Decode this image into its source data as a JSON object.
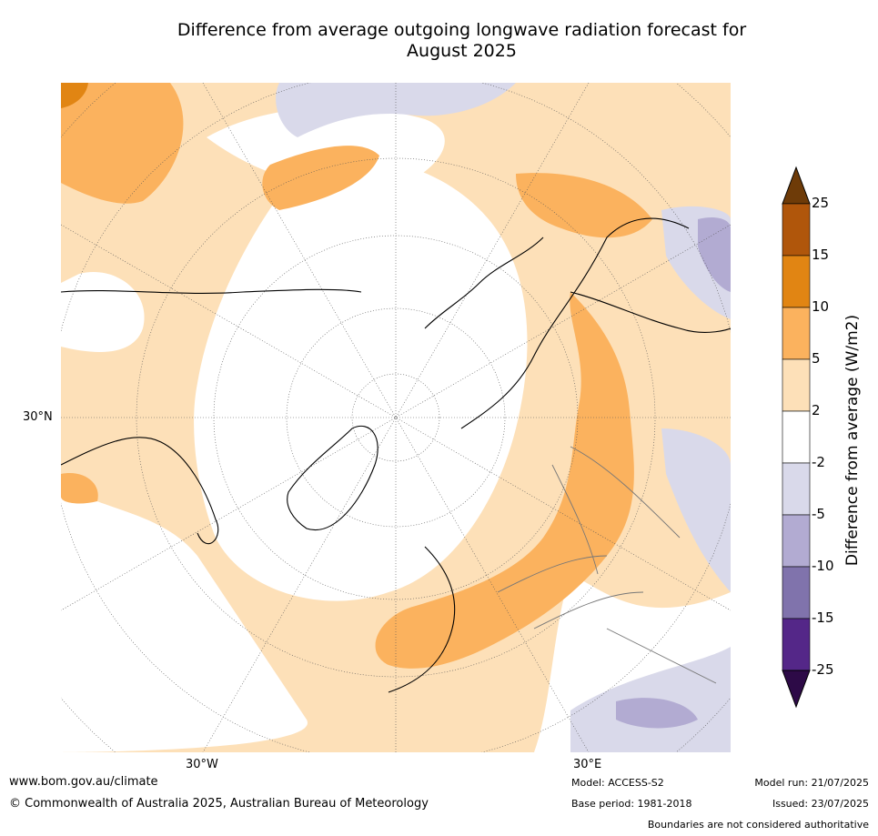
{
  "title": {
    "line1": "Difference from average outgoing longwave radiation forecast for",
    "line2": "August 2025"
  },
  "map": {
    "lat_label": "30°N",
    "lon_labels": [
      "30°W",
      "30°E"
    ]
  },
  "legend": {
    "title": "Difference from average (W/m2)",
    "ticks": [
      "25",
      "15",
      "10",
      "5",
      "2",
      "-2",
      "-5",
      "-10",
      "-15",
      "-25"
    ],
    "colors": [
      "#6e3b08",
      "#b0560b",
      "#e18513",
      "#fbb25e",
      "#fde0b8",
      "#ffffff",
      "#d9d9ea",
      "#b2abd2",
      "#8073ac",
      "#542788",
      "#2d0a47"
    ]
  },
  "footer": {
    "url": "www.bom.gov.au/climate",
    "copyright": "© Commonwealth of Australia 2025, Australian Bureau of Meteorology",
    "model": "Model: ACCESS-S2",
    "model_run": "Model run: 21/07/2025",
    "base_period": "Base period: 1981-2018",
    "issued": "Issued: 23/07/2025",
    "disclaimer": "Boundaries are not considered authoritative"
  }
}
